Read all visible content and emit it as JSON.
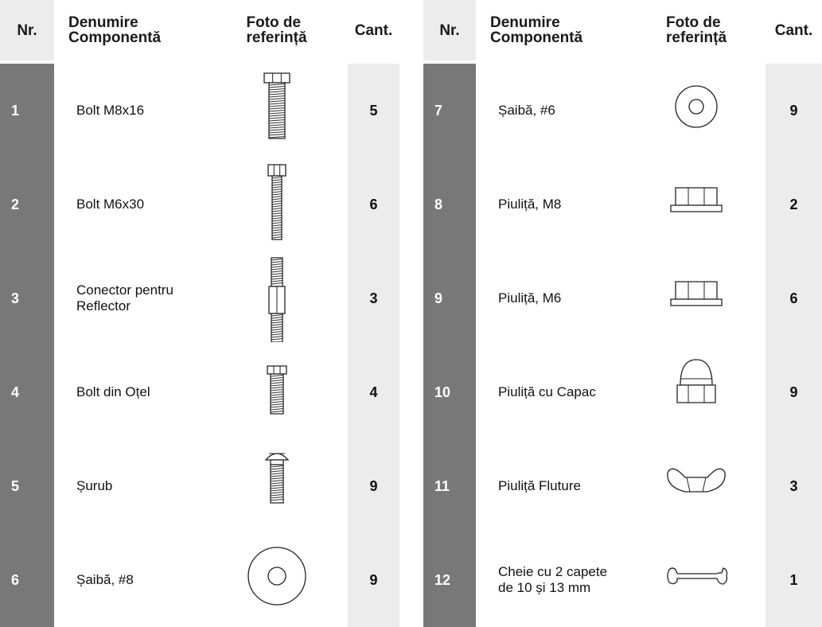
{
  "tables": [
    {
      "headers": [
        "Nr.",
        "Denumire\nComponentă",
        "Foto de\nreferință",
        "Cant."
      ],
      "rows": [
        [
          "1",
          "Bolt M8x16",
          "5"
        ],
        [
          "2",
          "Bolt M6x30",
          "6"
        ],
        [
          "3",
          "Conector pentru\nReflector",
          "3"
        ],
        [
          "4",
          "Bolt din Oțel",
          "4"
        ],
        [
          "5",
          "Șurub",
          "9"
        ],
        [
          "6",
          "Șaibă, #8",
          "9"
        ]
      ]
    },
    {
      "headers": [
        "Nr.",
        "Denumire\nComponentă",
        "Foto de\nreferință",
        "Cant."
      ],
      "rows": [
        [
          "7",
          "Șaibă, #6",
          "9"
        ],
        [
          "8",
          "Piuliță, M8",
          "2"
        ],
        [
          "9",
          "Piuliță, M6",
          "6"
        ],
        [
          "10",
          "Piuliță cu Capac",
          "9"
        ],
        [
          "11",
          "Piuliță Fluture",
          "3"
        ],
        [
          "12",
          "Cheie cu 2 capete\nde 10 și 13 mm",
          "1"
        ]
      ]
    }
  ]
}
